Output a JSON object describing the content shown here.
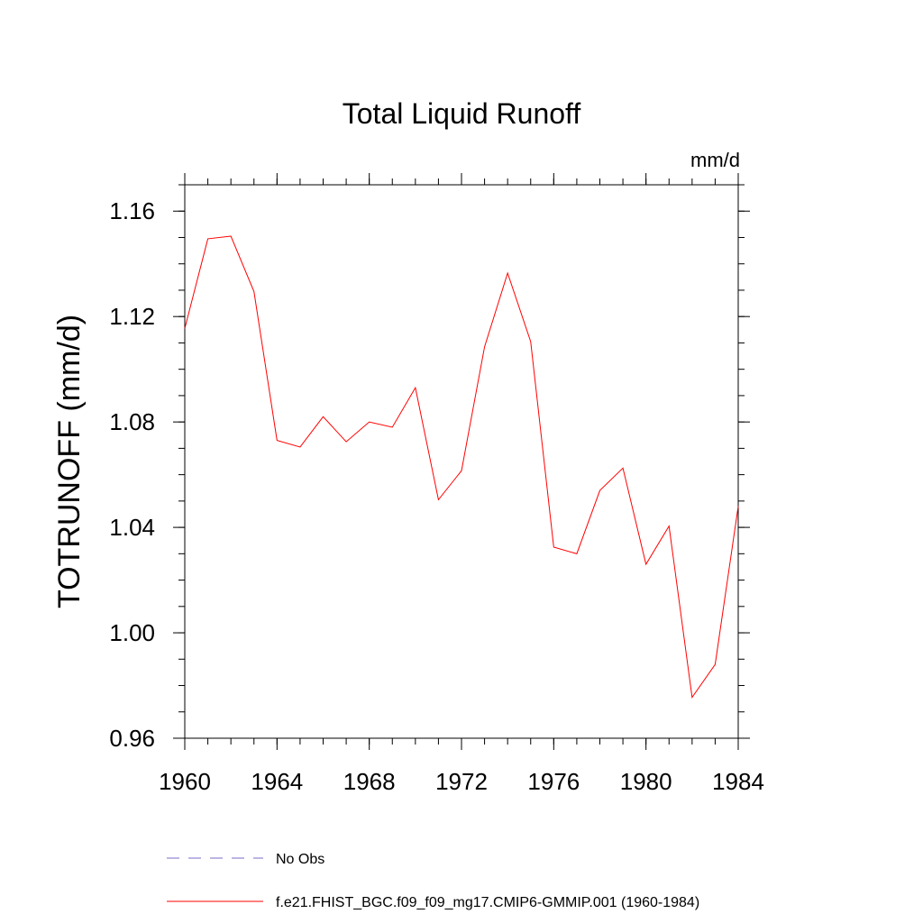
{
  "chart_data": {
    "type": "line",
    "title": "Total Liquid Runoff",
    "units": "mm/d",
    "ylabel": "TOTRUNOFF  (mm/d)",
    "xlabel": "",
    "xlim": [
      1960,
      1984
    ],
    "ylim": [
      0.96,
      1.17
    ],
    "x_ticks": [
      1960,
      1964,
      1968,
      1972,
      1976,
      1980,
      1984
    ],
    "x_tick_labels": [
      "1960",
      "1964",
      "1968",
      "1972",
      "1976",
      "1980",
      "1984"
    ],
    "y_ticks": [
      0.96,
      1.0,
      1.04,
      1.08,
      1.12,
      1.16
    ],
    "y_tick_labels": [
      "0.96",
      "1.00",
      "1.04",
      "1.08",
      "1.12",
      "1.16"
    ],
    "x_minor_step": 1,
    "y_minor_step": 0.01,
    "grid": false,
    "legend_position": "bottom-left",
    "legend": [
      {
        "label": "No Obs",
        "color": "#7b68c8",
        "style": "dashed"
      },
      {
        "label": "f.e21.FHIST_BGC.f09_f09_mg17.CMIP6-GMMIP.001 (1960-1984)",
        "color": "#ff0000",
        "style": "solid"
      }
    ],
    "series": [
      {
        "name": "f.e21.FHIST_BGC.f09_f09_mg17.CMIP6-GMMIP.001 (1960-1984)",
        "color": "#ff0000",
        "x": [
          1960,
          1961,
          1962,
          1963,
          1964,
          1965,
          1966,
          1967,
          1968,
          1969,
          1970,
          1971,
          1972,
          1973,
          1974,
          1975,
          1976,
          1977,
          1978,
          1979,
          1980,
          1981,
          1982,
          1983,
          1984
        ],
        "y": [
          1.1155,
          1.1495,
          1.1505,
          1.1295,
          1.073,
          1.0705,
          1.082,
          1.0725,
          1.08,
          1.078,
          1.093,
          1.0505,
          1.0615,
          1.1085,
          1.1365,
          1.1105,
          1.0325,
          1.03,
          1.054,
          1.0625,
          1.026,
          1.0405,
          0.9755,
          0.988,
          1.048
        ]
      }
    ]
  }
}
